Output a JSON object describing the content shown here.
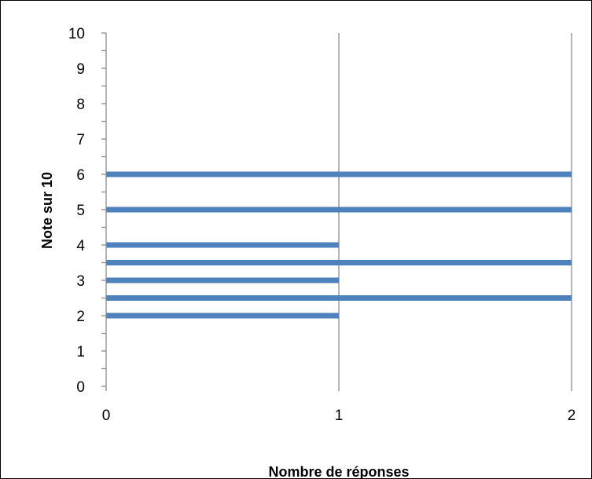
{
  "chart_data": {
    "type": "bar",
    "orientation": "horizontal",
    "title": "",
    "xlabel": "Nombre de réponses",
    "ylabel": "Note sur 10",
    "xlim": [
      0,
      2
    ],
    "ylim": [
      0,
      10
    ],
    "x_ticks": [
      "0",
      "1",
      "2"
    ],
    "y_ticks": [
      "0",
      "1",
      "2",
      "3",
      "4",
      "5",
      "6",
      "7",
      "8",
      "9",
      "10"
    ],
    "grid": "vertical major gridlines",
    "legend": "none",
    "bar_color": "#4f81bd",
    "bars": [
      {
        "note": 2.0,
        "value": 1
      },
      {
        "note": 2.5,
        "value": 2
      },
      {
        "note": 3.0,
        "value": 1
      },
      {
        "note": 3.5,
        "value": 2
      },
      {
        "note": 4.0,
        "value": 1
      },
      {
        "note": 5.0,
        "value": 2
      },
      {
        "note": 6.0,
        "value": 2
      }
    ]
  }
}
